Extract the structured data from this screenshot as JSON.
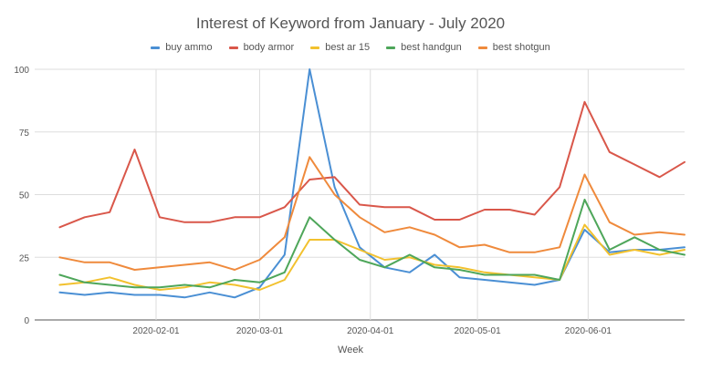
{
  "chart_data": {
    "type": "line",
    "title": "Interest of Keyword from January - July 2020",
    "xlabel": "Week",
    "ylabel": "",
    "ylim": [
      0,
      100
    ],
    "yticks": [
      0,
      25,
      50,
      75,
      100
    ],
    "grid": true,
    "legend_position": "top",
    "x_ticks": [
      "2020-02-01",
      "2020-03-01",
      "2020-04-01",
      "2020-05-01",
      "2020-06-01"
    ],
    "x": [
      "2020-01-05",
      "2020-01-12",
      "2020-01-19",
      "2020-01-26",
      "2020-02-02",
      "2020-02-09",
      "2020-02-16",
      "2020-02-23",
      "2020-03-01",
      "2020-03-08",
      "2020-03-15",
      "2020-03-22",
      "2020-03-29",
      "2020-04-05",
      "2020-04-12",
      "2020-04-19",
      "2020-04-26",
      "2020-05-03",
      "2020-05-10",
      "2020-05-17",
      "2020-05-24",
      "2020-05-31",
      "2020-06-07",
      "2020-06-14",
      "2020-06-21",
      "2020-06-28"
    ],
    "series": [
      {
        "name": "buy ammo",
        "color": "#4a8fd4",
        "values": [
          11,
          10,
          11,
          10,
          10,
          9,
          11,
          9,
          13,
          26,
          100,
          53,
          29,
          21,
          19,
          26,
          17,
          16,
          15,
          14,
          16,
          36,
          27,
          28,
          28,
          29
        ]
      },
      {
        "name": "body armor",
        "color": "#d9574a",
        "values": [
          37,
          41,
          43,
          68,
          41,
          39,
          39,
          41,
          41,
          45,
          56,
          57,
          46,
          45,
          45,
          40,
          40,
          44,
          44,
          42,
          53,
          87,
          67,
          62,
          57,
          63
        ]
      },
      {
        "name": "best ar 15",
        "color": "#f2c12e",
        "values": [
          14,
          15,
          17,
          14,
          12,
          13,
          15,
          14,
          12,
          16,
          32,
          32,
          28,
          24,
          25,
          22,
          21,
          19,
          18,
          17,
          16,
          38,
          26,
          28,
          26,
          28
        ]
      },
      {
        "name": "best handgun",
        "color": "#4ea65a",
        "values": [
          18,
          15,
          14,
          13,
          13,
          14,
          13,
          16,
          15,
          19,
          41,
          32,
          24,
          21,
          26,
          21,
          20,
          18,
          18,
          18,
          16,
          48,
          28,
          33,
          28,
          26
        ]
      },
      {
        "name": "best shotgun",
        "color": "#ef8a3c",
        "values": [
          25,
          23,
          23,
          20,
          21,
          22,
          23,
          20,
          24,
          33,
          65,
          50,
          41,
          35,
          37,
          34,
          29,
          30,
          27,
          27,
          29,
          58,
          39,
          34,
          35,
          34
        ]
      }
    ]
  }
}
